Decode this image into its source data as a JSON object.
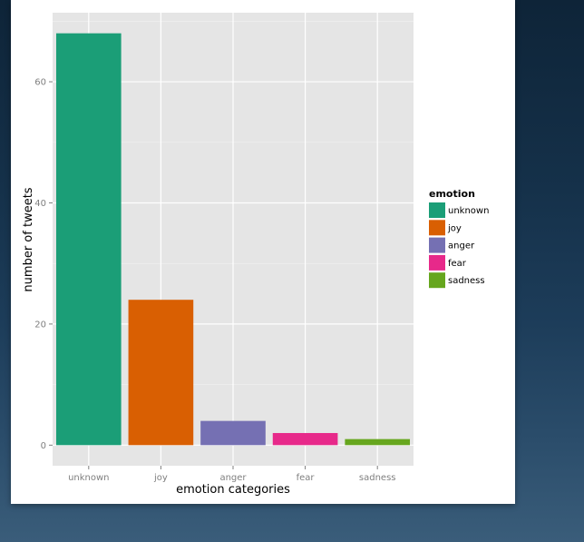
{
  "chart_data": {
    "type": "bar",
    "categories": [
      "unknown",
      "joy",
      "anger",
      "fear",
      "sadness"
    ],
    "values": [
      68,
      24,
      4,
      2,
      1
    ],
    "colors": [
      "#1b9e77",
      "#d95f02",
      "#7570b3",
      "#e7298a",
      "#66a61e"
    ],
    "xlabel": "emotion categories",
    "ylabel": "number of tweets",
    "ylim": [
      -3.4,
      71.4
    ],
    "yticks": [
      0,
      20,
      40,
      60
    ],
    "ytick_labels": [
      "0",
      "20",
      "40",
      "60"
    ],
    "grid": true,
    "legend": {
      "title": "emotion",
      "placement": "right",
      "entries": [
        "unknown",
        "joy",
        "anger",
        "fear",
        "sadness"
      ]
    },
    "panel_background": "#e5e5e5"
  }
}
